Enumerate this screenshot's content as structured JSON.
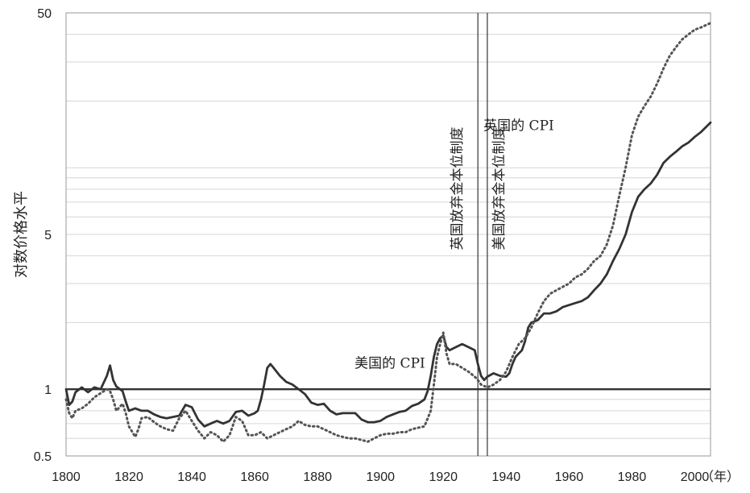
{
  "chart_data": {
    "type": "line",
    "ylabel": "对数价格水平",
    "xunit": "（年）",
    "yscale": "log",
    "xlim": [
      1800,
      2005
    ],
    "ylim": [
      0.5,
      50
    ],
    "y_ticks": [
      0.5,
      1,
      5,
      50
    ],
    "y_tick_labels": [
      "0.5",
      "1",
      "5",
      "50"
    ],
    "x_ticks": [
      1800,
      1820,
      1840,
      1860,
      1880,
      1900,
      1920,
      1940,
      1960,
      1980,
      2000
    ],
    "x_tick_labels": [
      "1800",
      "1820",
      "1840",
      "1860",
      "1880",
      "1900",
      "1920",
      "1940",
      "1960",
      "1980",
      "2000"
    ],
    "grid": true,
    "reference_line": 1,
    "series": [
      {
        "name": "美国的 CPI",
        "style": "solid",
        "color": "#333333",
        "x": [
          1800,
          1801,
          1802,
          1803,
          1805,
          1807,
          1809,
          1811,
          1813,
          1814,
          1815,
          1816,
          1818,
          1819,
          1820,
          1822,
          1824,
          1826,
          1828,
          1830,
          1832,
          1834,
          1836,
          1838,
          1840,
          1842,
          1844,
          1846,
          1848,
          1850,
          1852,
          1854,
          1856,
          1858,
          1860,
          1861,
          1862,
          1863,
          1864,
          1865,
          1866,
          1868,
          1870,
          1872,
          1874,
          1876,
          1878,
          1880,
          1882,
          1884,
          1886,
          1888,
          1890,
          1892,
          1894,
          1896,
          1898,
          1900,
          1902,
          1904,
          1906,
          1908,
          1910,
          1912,
          1914,
          1915,
          1916,
          1917,
          1918,
          1919,
          1920,
          1921,
          1922,
          1924,
          1926,
          1928,
          1930,
          1931,
          1932,
          1933,
          1934,
          1936,
          1938,
          1940,
          1941,
          1942,
          1943,
          1944,
          1945,
          1946,
          1947,
          1948,
          1950,
          1952,
          1954,
          1956,
          1958,
          1960,
          1962,
          1964,
          1966,
          1968,
          1970,
          1972,
          1974,
          1976,
          1978,
          1980,
          1982,
          1984,
          1986,
          1988,
          1990,
          1992,
          1994,
          1996,
          1998,
          2000,
          2002,
          2005
        ],
        "values": [
          1.0,
          0.85,
          0.88,
          0.97,
          1.02,
          0.97,
          1.02,
          1.0,
          1.15,
          1.28,
          1.1,
          1.03,
          0.98,
          0.88,
          0.8,
          0.82,
          0.8,
          0.8,
          0.77,
          0.75,
          0.74,
          0.75,
          0.76,
          0.85,
          0.83,
          0.73,
          0.68,
          0.7,
          0.72,
          0.7,
          0.72,
          0.79,
          0.8,
          0.76,
          0.78,
          0.8,
          0.9,
          1.05,
          1.25,
          1.3,
          1.25,
          1.15,
          1.08,
          1.05,
          1.0,
          0.95,
          0.87,
          0.85,
          0.86,
          0.8,
          0.77,
          0.78,
          0.78,
          0.78,
          0.73,
          0.71,
          0.71,
          0.72,
          0.75,
          0.77,
          0.79,
          0.8,
          0.84,
          0.86,
          0.9,
          0.98,
          1.15,
          1.4,
          1.6,
          1.7,
          1.75,
          1.55,
          1.5,
          1.55,
          1.6,
          1.55,
          1.5,
          1.3,
          1.15,
          1.1,
          1.14,
          1.18,
          1.15,
          1.14,
          1.18,
          1.3,
          1.4,
          1.45,
          1.5,
          1.65,
          1.9,
          2.0,
          2.05,
          2.2,
          2.2,
          2.25,
          2.35,
          2.4,
          2.45,
          2.5,
          2.6,
          2.8,
          3.0,
          3.3,
          3.8,
          4.3,
          5.0,
          6.3,
          7.4,
          8.0,
          8.5,
          9.3,
          10.5,
          11.2,
          11.8,
          12.5,
          13.0,
          13.8,
          14.5,
          16.0
        ]
      },
      {
        "name": "英国的 CPI",
        "style": "dotted",
        "color": "#555555",
        "x": [
          1800,
          1801,
          1802,
          1803,
          1805,
          1807,
          1809,
          1811,
          1813,
          1814,
          1815,
          1816,
          1818,
          1819,
          1820,
          1822,
          1823,
          1824,
          1826,
          1828,
          1830,
          1832,
          1834,
          1836,
          1838,
          1840,
          1842,
          1844,
          1846,
          1848,
          1850,
          1852,
          1854,
          1856,
          1858,
          1860,
          1862,
          1864,
          1866,
          1868,
          1870,
          1872,
          1874,
          1876,
          1878,
          1880,
          1882,
          1884,
          1886,
          1888,
          1890,
          1892,
          1894,
          1896,
          1898,
          1900,
          1902,
          1904,
          1906,
          1908,
          1910,
          1912,
          1914,
          1916,
          1917,
          1918,
          1919,
          1920,
          1921,
          1922,
          1924,
          1926,
          1928,
          1930,
          1931,
          1932,
          1934,
          1936,
          1938,
          1940,
          1942,
          1944,
          1946,
          1948,
          1950,
          1952,
          1954,
          1956,
          1958,
          1960,
          1962,
          1964,
          1966,
          1968,
          1970,
          1972,
          1974,
          1976,
          1978,
          1980,
          1982,
          1984,
          1986,
          1988,
          1990,
          1992,
          1994,
          1996,
          1998,
          2000,
          2002,
          2005
        ],
        "values": [
          0.9,
          0.78,
          0.74,
          0.8,
          0.82,
          0.86,
          0.92,
          0.96,
          1.0,
          0.98,
          0.9,
          0.8,
          0.86,
          0.78,
          0.68,
          0.61,
          0.66,
          0.74,
          0.75,
          0.71,
          0.68,
          0.66,
          0.65,
          0.74,
          0.8,
          0.72,
          0.65,
          0.6,
          0.64,
          0.62,
          0.58,
          0.62,
          0.75,
          0.72,
          0.62,
          0.62,
          0.64,
          0.6,
          0.62,
          0.64,
          0.66,
          0.68,
          0.72,
          0.69,
          0.68,
          0.68,
          0.66,
          0.64,
          0.62,
          0.61,
          0.6,
          0.6,
          0.59,
          0.58,
          0.6,
          0.62,
          0.63,
          0.63,
          0.64,
          0.64,
          0.66,
          0.67,
          0.68,
          0.8,
          1.05,
          1.4,
          1.6,
          1.8,
          1.45,
          1.3,
          1.3,
          1.25,
          1.2,
          1.14,
          1.1,
          1.05,
          1.02,
          1.05,
          1.1,
          1.2,
          1.4,
          1.6,
          1.7,
          1.9,
          2.2,
          2.5,
          2.7,
          2.8,
          2.9,
          3.0,
          3.2,
          3.3,
          3.5,
          3.8,
          4.0,
          4.5,
          5.5,
          7.5,
          10.0,
          14.0,
          17.0,
          19.0,
          21.0,
          24.0,
          28.0,
          32.0,
          35.0,
          38.0,
          40.0,
          42.0,
          43.0,
          45.0
        ]
      }
    ],
    "annotations": [
      {
        "text": "美国的 CPI",
        "x": 1903,
        "y": 1.25
      },
      {
        "text": "英国的 CPI",
        "x": 1944,
        "y": 14.8
      }
    ],
    "vertical_markers": [
      {
        "x": 1931,
        "label": "英国放弃金本位制度"
      },
      {
        "x": 1934,
        "label": "美国放弃金本位制度"
      }
    ]
  }
}
